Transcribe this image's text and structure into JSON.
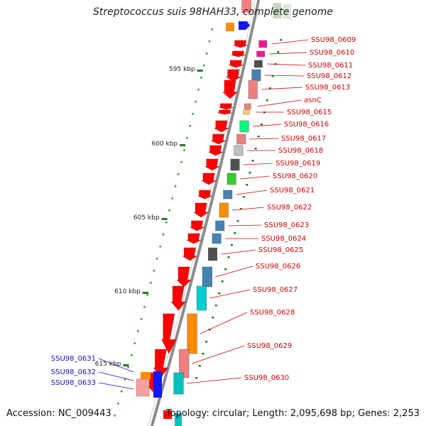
{
  "title": "Streptococcus suis 98HAH33, complete genome",
  "accession": "Accession: NC_009443",
  "topology": "Topology: circular; Length: 2,095,698 bp; Genes: 2,253",
  "colors": {
    "backbone": "#8c8c8c",
    "forward": "#ff0000",
    "reverse": "#1414ff",
    "tick_major": "#1f7a1f",
    "tick_minor": "#2f9e2f",
    "label_forward": "#d40000",
    "label_reverse": "#1010c0"
  },
  "scale_labels": [
    "595 kbp",
    "600 kbp",
    "605 kbp",
    "610 kbp",
    "615 kbp"
  ],
  "gene_labels_right": [
    "SSU98_0609",
    "SSU98_0610",
    "SSU98_0611",
    "SSU98_0612",
    "SSU98_0613",
    "asnC",
    "SSU98_0615",
    "SSU98_0616",
    "SSU98_0617",
    "SSU98_0618",
    "SSU98_0619",
    "SSU98_0620",
    "SSU98_0621",
    "SSU98_0622",
    "SSU98_0623",
    "SSU98_0624",
    "SSU98_0625",
    "SSU98_0626",
    "SSU98_0627",
    "SSU98_0628",
    "SSU98_0629",
    "SSU98_0630"
  ],
  "gene_labels_left": [
    "SSU98_0631",
    "SSU98_0632",
    "SSU98_0633"
  ],
  "cog_colors": [
    "#ff1493",
    "#ff1493",
    "#505050",
    "#4682b4",
    "#f08080",
    "#f08080",
    "#ffd070",
    "#00ff7f",
    "#f08080",
    "#c0c0c0",
    "#505050",
    "#32cd32",
    "#4682b4",
    "#ff8c00",
    "#4682b4",
    "#4682b4",
    "#505050",
    "#4682b4",
    "#00ced1",
    "#ff8c00",
    "#f08080",
    "#00bfbf"
  ]
}
